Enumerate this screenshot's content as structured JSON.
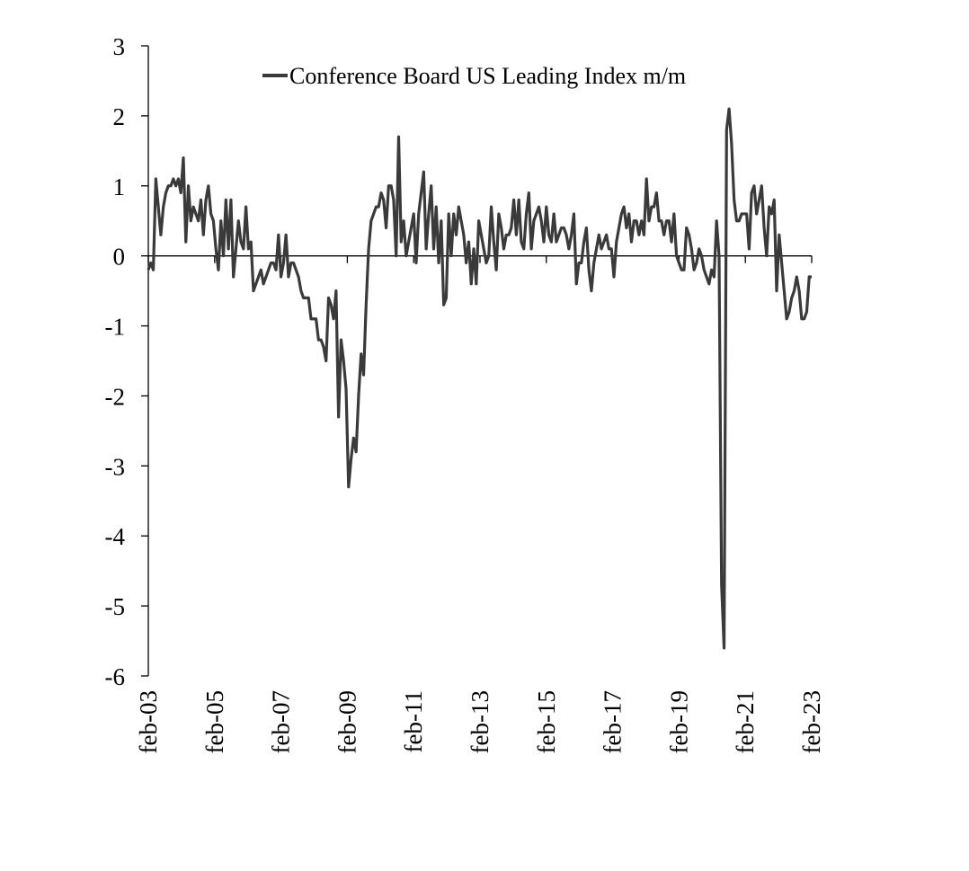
{
  "chart_data": {
    "type": "line",
    "title": "",
    "xlabel": "",
    "ylabel": "",
    "ylim": [
      -6,
      3
    ],
    "yticks": [
      3,
      2,
      1,
      0,
      -1,
      -2,
      -3,
      -4,
      -5,
      -6
    ],
    "xtick_labels": [
      "feb-03",
      "feb-05",
      "feb-07",
      "feb-09",
      "feb-11",
      "feb-13",
      "feb-15",
      "feb-17",
      "feb-19",
      "feb-21",
      "feb-23"
    ],
    "x_start": "feb-03",
    "x_end": "feb-23",
    "legend_position": "top",
    "grid": false,
    "series": [
      {
        "name": "Conference Board US Leading Index m/m",
        "color": "#3a3a3a",
        "values": [
          -0.2,
          -0.1,
          -0.2,
          1.1,
          0.7,
          0.3,
          0.7,
          0.9,
          1.0,
          1.0,
          1.1,
          1.0,
          1.1,
          0.9,
          1.4,
          0.2,
          1.0,
          0.5,
          0.7,
          0.6,
          0.5,
          0.8,
          0.3,
          0.8,
          1.0,
          0.6,
          0.5,
          0.1,
          -0.2,
          0.5,
          0.0,
          0.8,
          0.1,
          0.8,
          -0.3,
          0.1,
          0.5,
          0.2,
          0.1,
          0.7,
          0.1,
          0.2,
          -0.5,
          -0.4,
          -0.3,
          -0.2,
          -0.4,
          -0.3,
          -0.2,
          -0.1,
          -0.1,
          -0.2,
          0.3,
          -0.3,
          -0.1,
          0.3,
          -0.3,
          -0.1,
          -0.1,
          -0.2,
          -0.3,
          -0.5,
          -0.6,
          -0.6,
          -0.6,
          -0.9,
          -0.9,
          -0.9,
          -1.2,
          -1.2,
          -1.3,
          -1.5,
          -0.6,
          -0.7,
          -0.9,
          -0.5,
          -2.3,
          -1.2,
          -1.5,
          -1.9,
          -3.3,
          -2.9,
          -2.6,
          -2.8,
          -2.0,
          -1.4,
          -1.7,
          -0.7,
          0.1,
          0.5,
          0.6,
          0.7,
          0.7,
          0.9,
          0.8,
          0.4,
          1.0,
          1.0,
          0.8,
          0.0,
          1.7,
          0.2,
          0.5,
          0.0,
          0.2,
          0.4,
          0.6,
          -0.1,
          0.6,
          0.9,
          1.2,
          0.1,
          0.6,
          1.0,
          0.1,
          0.7,
          -0.1,
          0.5,
          -0.7,
          -0.6,
          0.6,
          0.0,
          0.6,
          0.3,
          0.7,
          0.5,
          0.3,
          -0.1,
          0.2,
          -0.4,
          0.1,
          -0.4,
          0.5,
          0.3,
          0.1,
          -0.1,
          0.0,
          0.7,
          0.2,
          -0.2,
          0.6,
          0.4,
          0.1,
          0.3,
          0.3,
          0.4,
          0.8,
          0.3,
          0.8,
          0.2,
          0.1,
          0.6,
          0.9,
          0.1,
          0.5,
          0.6,
          0.7,
          0.5,
          0.2,
          0.7,
          0.3,
          0.2,
          0.6,
          0.2,
          0.3,
          0.4,
          0.4,
          0.3,
          0.1,
          0.3,
          0.6,
          -0.4,
          -0.1,
          -0.1,
          0.2,
          0.4,
          -0.2,
          -0.5,
          -0.1,
          0.1,
          0.3,
          0.1,
          0.2,
          0.3,
          0.1,
          0.1,
          -0.3,
          0.2,
          0.4,
          0.6,
          0.7,
          0.4,
          0.6,
          0.2,
          0.5,
          0.5,
          0.3,
          0.5,
          0.3,
          1.1,
          0.5,
          0.7,
          0.7,
          0.9,
          0.5,
          0.5,
          0.3,
          0.5,
          0.5,
          0.2,
          0.6,
          0.0,
          -0.1,
          -0.2,
          -0.2,
          0.4,
          0.3,
          0.1,
          -0.2,
          -0.1,
          0.1,
          0.0,
          -0.2,
          -0.3,
          -0.4,
          -0.2,
          -0.3,
          0.5,
          0.0,
          -4.7,
          -5.6,
          1.8,
          2.1,
          1.6,
          0.8,
          0.5,
          0.5,
          0.6,
          0.6,
          0.6,
          0.1,
          0.9,
          1.0,
          0.6,
          0.8,
          1.0,
          0.4,
          0.0,
          0.7,
          0.6,
          0.8,
          -0.5,
          0.3,
          -0.1,
          -0.5,
          -0.9,
          -0.8,
          -0.6,
          -0.5,
          -0.3,
          -0.5,
          -0.9,
          -0.9,
          -0.8,
          -0.3,
          -0.3
        ]
      }
    ]
  }
}
